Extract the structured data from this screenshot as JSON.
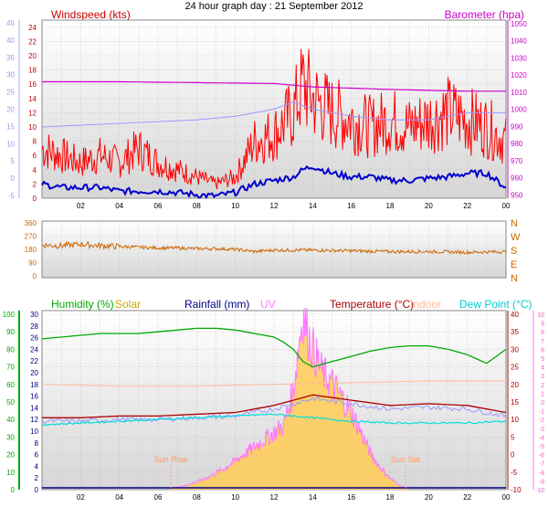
{
  "title": "24 hour graph day : 21 September 2012",
  "colors": {
    "wind": "#ff0000",
    "wind_axis": "#aaaaff",
    "wind_label": "#cc0000",
    "baro": "#cc00cc",
    "dir": "#cc6600",
    "humidity": "#00aa00",
    "solar": "#ccaa00",
    "rain": "#000088",
    "uv": "#ff77ff",
    "temp": "#aa0000",
    "indoor": "#ffbb99",
    "dew": "#00dddd",
    "solar_fill": "#ffcc55",
    "gray_line": "#9999ff",
    "blue_dark": "#0000cc",
    "grid": "#bbbbbb",
    "plot_bg_top": "#ffffff",
    "plot_bg_bottom": "#d8d8d8"
  },
  "chart_data": [
    {
      "type": "line",
      "name": "wind-barometer",
      "x_ticks": [
        "02",
        "04",
        "06",
        "08",
        "10",
        "12",
        "14",
        "16",
        "18",
        "20",
        "22",
        "00"
      ],
      "left_labels": {
        "title": "Windspeed (kts)",
        "ticks": [
          0,
          2,
          4,
          6,
          8,
          10,
          12,
          14,
          16,
          18,
          20,
          22,
          24
        ]
      },
      "far_left_ticks": [
        -5,
        0,
        5,
        10,
        15,
        20,
        25,
        30,
        35,
        40,
        45
      ],
      "right_labels": {
        "title": "Barometer (hpa)",
        "ticks": [
          950,
          960,
          970,
          980,
          990,
          1000,
          1010,
          1020,
          1030,
          1040,
          1050
        ]
      },
      "ylim_wind": [
        0,
        25
      ],
      "ylim_baro": [
        948,
        1052
      ],
      "series": [
        {
          "key": "wind_gust",
          "hours": [
            0,
            1,
            2,
            3,
            4,
            5,
            6,
            7,
            8,
            9,
            10,
            11,
            12,
            13,
            13.5,
            14,
            15,
            16,
            17,
            18,
            19,
            20,
            21,
            22,
            23,
            24
          ],
          "values": [
            7,
            6,
            5,
            6,
            5,
            7,
            5,
            4,
            3,
            2,
            3,
            8,
            9,
            12,
            16,
            14,
            12,
            11,
            10,
            11,
            10,
            11,
            12,
            11,
            10,
            8
          ]
        },
        {
          "key": "wind_avg",
          "hours": [
            0,
            1,
            2,
            3,
            4,
            5,
            6,
            7,
            8,
            9,
            10,
            11,
            12,
            13,
            13.5,
            14,
            15,
            16,
            17,
            18,
            19,
            20,
            21,
            22,
            23,
            24
          ],
          "values": [
            2,
            1.5,
            1.5,
            1.5,
            1,
            1,
            1,
            0.8,
            0.5,
            0.3,
            0.8,
            2,
            2.5,
            3,
            4,
            4.5,
            3.5,
            3,
            3,
            2.5,
            2.5,
            2.8,
            3,
            3.5,
            3.5,
            1.5
          ]
        },
        {
          "key": "barometer",
          "hours": [
            0,
            4,
            8,
            12,
            14,
            18,
            22,
            24
          ],
          "values": [
            1016,
            1016,
            1015.5,
            1015,
            1013,
            1011.5,
            1010.5,
            1010.5
          ]
        },
        {
          "key": "wind_axis_line",
          "hours": [
            0,
            4,
            8,
            10,
            12,
            13,
            14,
            16,
            18,
            20,
            22,
            24
          ],
          "values": [
            10,
            10.5,
            11,
            11.5,
            12.5,
            13.5,
            12.5,
            11.5,
            11,
            11,
            12,
            12
          ]
        }
      ]
    },
    {
      "type": "line",
      "name": "wind-direction",
      "left_ticks": [
        0,
        90,
        180,
        270,
        360
      ],
      "right_labels": [
        "N",
        "W",
        "S",
        "E",
        "N"
      ],
      "ylim": [
        0,
        360
      ],
      "series": [
        {
          "key": "direction",
          "hours": [
            0,
            1,
            2,
            3,
            4,
            5,
            6,
            7,
            8,
            9,
            10,
            11,
            12,
            14,
            16,
            18,
            20,
            22,
            24
          ],
          "values": [
            210,
            205,
            215,
            205,
            200,
            195,
            190,
            190,
            185,
            185,
            180,
            165,
            175,
            175,
            170,
            165,
            165,
            160,
            165
          ]
        }
      ]
    },
    {
      "type": "line",
      "name": "humidity-temperature",
      "legend": [
        "Humidity (%)",
        "Solar",
        "Rainfall (mm)",
        "UV",
        "Temperature (°C)",
        "Indoor",
        "Dew Point (°C)"
      ],
      "humidity_ticks": [
        0,
        10,
        20,
        30,
        40,
        50,
        60,
        70,
        80,
        90,
        100
      ],
      "rain_ticks": [
        0,
        2,
        4,
        6,
        8,
        10,
        12,
        14,
        16,
        18,
        20,
        22,
        24,
        26,
        28,
        30
      ],
      "temp_ticks": [
        -10,
        -5,
        0,
        5,
        10,
        15,
        20,
        25,
        30,
        35,
        40
      ],
      "uv_ticks": [
        -10,
        -9,
        -8,
        -7,
        -6,
        -5,
        -4,
        -3,
        -2,
        -1,
        0,
        1,
        2,
        3,
        4,
        5,
        6,
        7,
        8,
        9,
        10
      ],
      "annotations": [
        "Sun Rise",
        "Sun Set"
      ],
      "ylim_humidity": [
        0,
        100
      ],
      "ylim_temp": [
        -10,
        40
      ],
      "series": [
        {
          "key": "humidity",
          "hours": [
            0,
            1,
            2,
            3,
            4,
            5,
            6,
            7,
            8,
            9,
            10,
            11,
            12,
            12.5,
            13,
            13.5,
            14,
            15,
            16,
            17,
            18,
            19,
            20,
            21,
            22,
            23,
            24
          ],
          "values": [
            86,
            87,
            88,
            89,
            89,
            89,
            90,
            91,
            92,
            92,
            91,
            89,
            87,
            84,
            80,
            73,
            70,
            73,
            76,
            79,
            81,
            82,
            82,
            80,
            77,
            72,
            80
          ]
        },
        {
          "key": "temperature",
          "hours": [
            0,
            2,
            4,
            6,
            8,
            10,
            12,
            13,
            14,
            16,
            18,
            20,
            22,
            24
          ],
          "values": [
            10.5,
            10.5,
            11,
            11,
            11.5,
            12,
            14,
            15.5,
            17,
            15.5,
            14,
            14.5,
            14,
            12
          ]
        },
        {
          "key": "dew_point",
          "hours": [
            0,
            2,
            4,
            6,
            8,
            10,
            12,
            14,
            16,
            18,
            20,
            22,
            24
          ],
          "values": [
            8.5,
            9,
            9.5,
            10,
            10.5,
            11,
            11.5,
            10.5,
            9.5,
            9,
            9,
            9,
            9.5
          ]
        },
        {
          "key": "indoor",
          "hours": [
            0,
            4,
            8,
            12,
            16,
            20,
            24
          ],
          "values": [
            20,
            19.5,
            19.5,
            20,
            20.5,
            21,
            21
          ]
        },
        {
          "key": "solar",
          "hours": [
            6.5,
            7.5,
            8.5,
            9.5,
            10.5,
            11.5,
            12.5,
            13,
            13.3,
            13.5,
            13.7,
            14,
            14.5,
            15,
            15.5,
            16,
            16.5,
            17,
            17.5,
            18,
            18.5,
            19
          ],
          "values": [
            0,
            1,
            3,
            6,
            10,
            14,
            18,
            28,
            42,
            50,
            45,
            40,
            33,
            30,
            26,
            22,
            16,
            10,
            6,
            3,
            1,
            0
          ]
        }
      ]
    }
  ]
}
